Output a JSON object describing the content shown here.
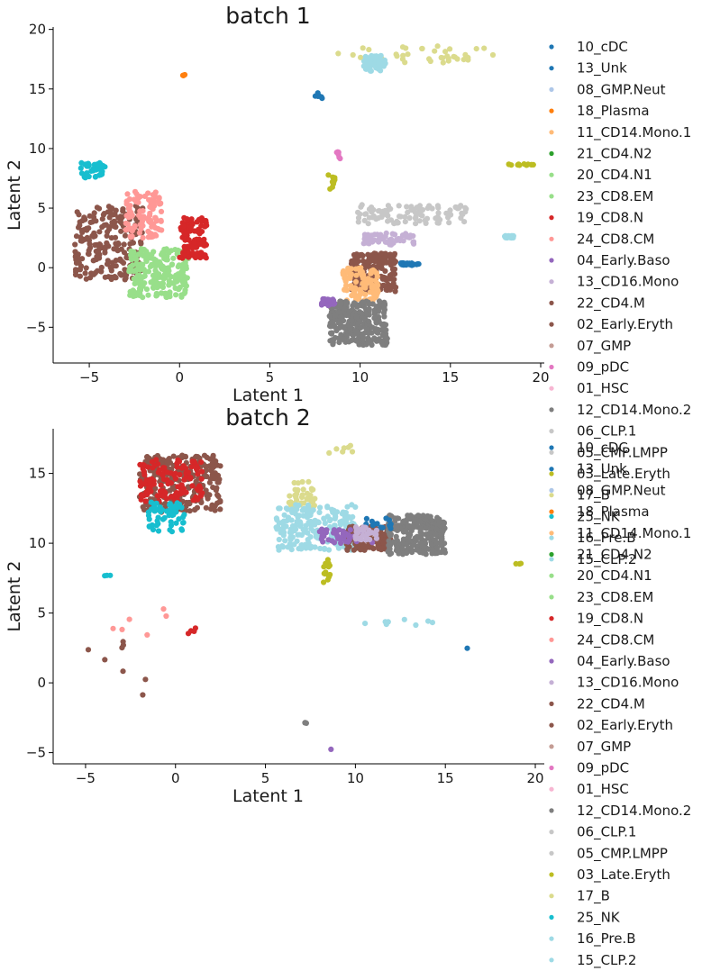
{
  "chart_data": [
    {
      "type": "scatter",
      "title": "batch 1",
      "xlabel": "Latent 1",
      "ylabel": "Latent 2",
      "xlim": [
        -7,
        20.2
      ],
      "ylim": [
        -8,
        20.2
      ],
      "xticks": [
        "−5",
        "0",
        "5",
        "10",
        "15",
        "20"
      ],
      "xtick_values": [
        -5,
        0,
        5,
        10,
        15,
        20
      ],
      "yticks": [
        "−5",
        "0",
        "5",
        "10",
        "15",
        "20"
      ],
      "ytick_values": [
        -5,
        0,
        5,
        10,
        15,
        20
      ],
      "grid": false,
      "legend_position": "right",
      "legend": [
        "10_cDC",
        "13_Unk",
        "08_GMP.Neut",
        "18_Plasma",
        "11_CD14.Mono.1",
        "21_CD4.N2",
        "20_CD4.N1",
        "23_CD8.EM",
        "19_CD8.N",
        "24_CD8.CM",
        "04_Early.Baso",
        "13_CD16.Mono",
        "22_CD4.M",
        "02_Early.Eryth",
        "07_GMP",
        "09_pDC",
        "01_HSC",
        "12_CD14.Mono.2",
        "06_CLP.1",
        "05_CMP.LMPP",
        "03_Late.Eryth",
        "17_B",
        "25_NK",
        "16_Pre.B",
        "15_CLP.2"
      ],
      "clusters": [
        {
          "series": "17_B",
          "x": [
            8.6,
            17.6
          ],
          "y": [
            17.2,
            18.6
          ],
          "count": 40
        },
        {
          "series": "15_CLP.2",
          "x": [
            10.2,
            11.4
          ],
          "y": [
            16.5,
            17.8
          ],
          "count": 60
        },
        {
          "series": "18_Plasma",
          "x": [
            0.1,
            0.3
          ],
          "y": [
            16.1,
            16.2
          ],
          "count": 4
        },
        {
          "series": "13_Unk",
          "x": [
            7.5,
            7.9
          ],
          "y": [
            14.2,
            14.7
          ],
          "count": 6
        },
        {
          "series": "25_NK",
          "x": [
            -5.5,
            -4.0
          ],
          "y": [
            7.5,
            8.8
          ],
          "count": 40
        },
        {
          "series": "09_pDC",
          "x": [
            8.9,
            8.7
          ],
          "y": [
            9.0,
            10.0
          ],
          "count": 6
        },
        {
          "series": "03_Late.Eryth",
          "x": [
            8.2,
            8.6
          ],
          "y": [
            6.6,
            7.8
          ],
          "count": 10
        },
        {
          "series": "03_Late.Eryth",
          "x": [
            18.2,
            19.6
          ],
          "y": [
            8.6,
            8.7
          ],
          "count": 12
        },
        {
          "series": "22_CD4.M",
          "x": [
            -5.8,
            -2.0
          ],
          "y": [
            -1.0,
            5.2
          ],
          "count": 220
        },
        {
          "series": "20_CD4.N1",
          "x": [
            -2.8,
            0.5
          ],
          "y": [
            -2.5,
            1.7
          ],
          "count": 220
        },
        {
          "series": "24_CD8.CM",
          "x": [
            -3.0,
            -1.0
          ],
          "y": [
            2.5,
            6.4
          ],
          "count": 100
        },
        {
          "series": "19_CD8.N",
          "x": [
            0.0,
            1.5
          ],
          "y": [
            0.8,
            4.2
          ],
          "count": 110
        },
        {
          "series": "05_CMP.LMPP",
          "x": [
            9.8,
            16.0
          ],
          "y": [
            3.7,
            5.3
          ],
          "count": 100
        },
        {
          "series": "13_CD16.Mono",
          "x": [
            10.2,
            13.0
          ],
          "y": [
            1.9,
            2.9
          ],
          "count": 60
        },
        {
          "series": "16_Pre.B",
          "x": [
            18.0,
            18.5
          ],
          "y": [
            2.5,
            2.7
          ],
          "count": 40
        },
        {
          "series": "02_Early.Eryth",
          "x": [
            9.5,
            12.0
          ],
          "y": [
            -2.0,
            1.2
          ],
          "count": 160
        },
        {
          "series": "11_CD14.Mono.1",
          "x": [
            9.0,
            11.0
          ],
          "y": [
            -3.0,
            0.0
          ],
          "count": 100
        },
        {
          "series": "12_CD14.Mono.2",
          "x": [
            8.3,
            11.5
          ],
          "y": [
            -6.5,
            -2.8
          ],
          "count": 260
        },
        {
          "series": "04_Early.Baso",
          "x": [
            7.8,
            8.6
          ],
          "y": [
            -3.2,
            -2.6
          ],
          "count": 20
        },
        {
          "series": "10_cDC",
          "x": [
            12.2,
            13.3
          ],
          "y": [
            0.2,
            0.4
          ],
          "count": 30
        }
      ]
    },
    {
      "type": "scatter",
      "title": "batch 2",
      "xlabel": "Latent 1",
      "ylabel": "Latent 2",
      "xlim": [
        -6.8,
        20.5
      ],
      "ylim": [
        -5.8,
        18.2
      ],
      "xticks": [
        "−5",
        "0",
        "5",
        "10",
        "15",
        "20"
      ],
      "xtick_values": [
        -5,
        0,
        5,
        10,
        15,
        20
      ],
      "yticks": [
        "−5",
        "0",
        "5",
        "10",
        "15"
      ],
      "ytick_values": [
        -5,
        0,
        5,
        10,
        15
      ],
      "grid": false,
      "legend_position": "right",
      "legend": [
        "10_cDC",
        "13_Unk",
        "08_GMP.Neut",
        "18_Plasma",
        "11_CD14.Mono.1",
        "21_CD4.N2",
        "20_CD4.N1",
        "23_CD8.EM",
        "19_CD8.N",
        "24_CD8.CM",
        "04_Early.Baso",
        "13_CD16.Mono",
        "22_CD4.M",
        "02_Early.Eryth",
        "07_GMP",
        "09_pDC",
        "01_HSC",
        "12_CD14.Mono.2",
        "06_CLP.1",
        "05_CMP.LMPP",
        "03_Late.Eryth",
        "17_B",
        "25_NK",
        "16_Pre.B",
        "15_CLP.2"
      ],
      "clusters": [
        {
          "series": "22_CD4.M",
          "x": [
            -2.0,
            2.5
          ],
          "y": [
            12.2,
            16.3
          ],
          "count": 260
        },
        {
          "series": "19_CD8.N",
          "x": [
            -2.0,
            1.5
          ],
          "y": [
            13.0,
            16.0
          ],
          "count": 120
        },
        {
          "series": "25_NK",
          "x": [
            -1.5,
            0.5
          ],
          "y": [
            10.8,
            13.0
          ],
          "count": 60
        },
        {
          "series": "17_B",
          "x": [
            6.3,
            7.8
          ],
          "y": [
            12.5,
            14.4
          ],
          "count": 40
        },
        {
          "series": "16_Pre.B",
          "x": [
            5.6,
            10.0
          ],
          "y": [
            9.5,
            12.8
          ],
          "count": 200
        },
        {
          "series": "02_Early.Eryth",
          "x": [
            9.5,
            12.0
          ],
          "y": [
            9.5,
            11.2
          ],
          "count": 160
        },
        {
          "series": "12_CD14.Mono.2",
          "x": [
            11.8,
            15.0
          ],
          "y": [
            9.2,
            12.0
          ],
          "count": 260
        },
        {
          "series": "03_Late.Eryth",
          "x": [
            8.2,
            8.6
          ],
          "y": [
            7.2,
            9.0
          ],
          "count": 14
        },
        {
          "series": "10_cDC",
          "x": [
            10.5,
            12.0
          ],
          "y": [
            11.0,
            11.8
          ],
          "count": 15
        },
        {
          "series": "04_Early.Baso",
          "x": [
            8.0,
            11.0
          ],
          "y": [
            10.0,
            11.0
          ],
          "count": 40
        },
        {
          "series": "13_CD16.Mono",
          "x": [
            10.0,
            11.2
          ],
          "y": [
            10.2,
            11.2
          ],
          "count": 30
        },
        {
          "series": "17_B",
          "x": [
            8.4,
            10.0
          ],
          "y": [
            16.4,
            17.0
          ],
          "count": 7
        },
        {
          "series": "03_Late.Eryth",
          "x": [
            18.8,
            19.2
          ],
          "y": [
            8.5,
            8.6
          ],
          "count": 3
        },
        {
          "series": "25_NK",
          "x": [
            -4.0,
            -3.6
          ],
          "y": [
            7.6,
            7.8
          ],
          "count": 3
        },
        {
          "series": "22_CD4.M",
          "x": [
            -5.0,
            -1.5
          ],
          "y": [
            -2.4,
            4.6
          ],
          "count": 8
        },
        {
          "series": "24_CD8.CM",
          "x": [
            -3.5,
            1.5
          ],
          "y": [
            3.4,
            5.3
          ],
          "count": 6
        },
        {
          "series": "19_CD8.N",
          "x": [
            0.5,
            1.2
          ],
          "y": [
            3.4,
            4.0
          ],
          "count": 4
        },
        {
          "series": "15_CLP.2",
          "x": [
            10.5,
            14.5
          ],
          "y": [
            4.1,
            4.6
          ],
          "count": 8
        },
        {
          "series": "12_CD14.Mono.2",
          "x": [
            7.2,
            7.4
          ],
          "y": [
            -2.9,
            -2.8
          ],
          "count": 4
        },
        {
          "series": "10_cDC",
          "x": [
            16.2,
            16.3
          ],
          "y": [
            2.4,
            2.5
          ],
          "count": 1
        },
        {
          "series": "04_Early.Baso",
          "x": [
            8.6,
            8.7
          ],
          "y": [
            -4.8,
            -4.7
          ],
          "count": 1
        }
      ]
    }
  ],
  "colors": {
    "10_cDC": "#1f77b4",
    "13_Unk": "#1f77b4",
    "08_GMP.Neut": "#aec7e8",
    "18_Plasma": "#ff7f0e",
    "11_CD14.Mono.1": "#ffbb78",
    "21_CD4.N2": "#2ca02c",
    "20_CD4.N1": "#98df8a",
    "23_CD8.EM": "#98df8a",
    "19_CD8.N": "#d62728",
    "24_CD8.CM": "#ff9896",
    "04_Early.Baso": "#9467bd",
    "13_CD16.Mono": "#c5b0d5",
    "22_CD4.M": "#8c564b",
    "02_Early.Eryth": "#8c564b",
    "07_GMP": "#c49c94",
    "09_pDC": "#e377c2",
    "01_HSC": "#f7b6d2",
    "12_CD14.Mono.2": "#7f7f7f",
    "06_CLP.1": "#c7c7c7",
    "05_CMP.LMPP": "#c7c7c7",
    "03_Late.Eryth": "#bcbd22",
    "17_B": "#dbdb8d",
    "25_NK": "#17becf",
    "16_Pre.B": "#9edae5",
    "15_CLP.2": "#9edae5"
  }
}
